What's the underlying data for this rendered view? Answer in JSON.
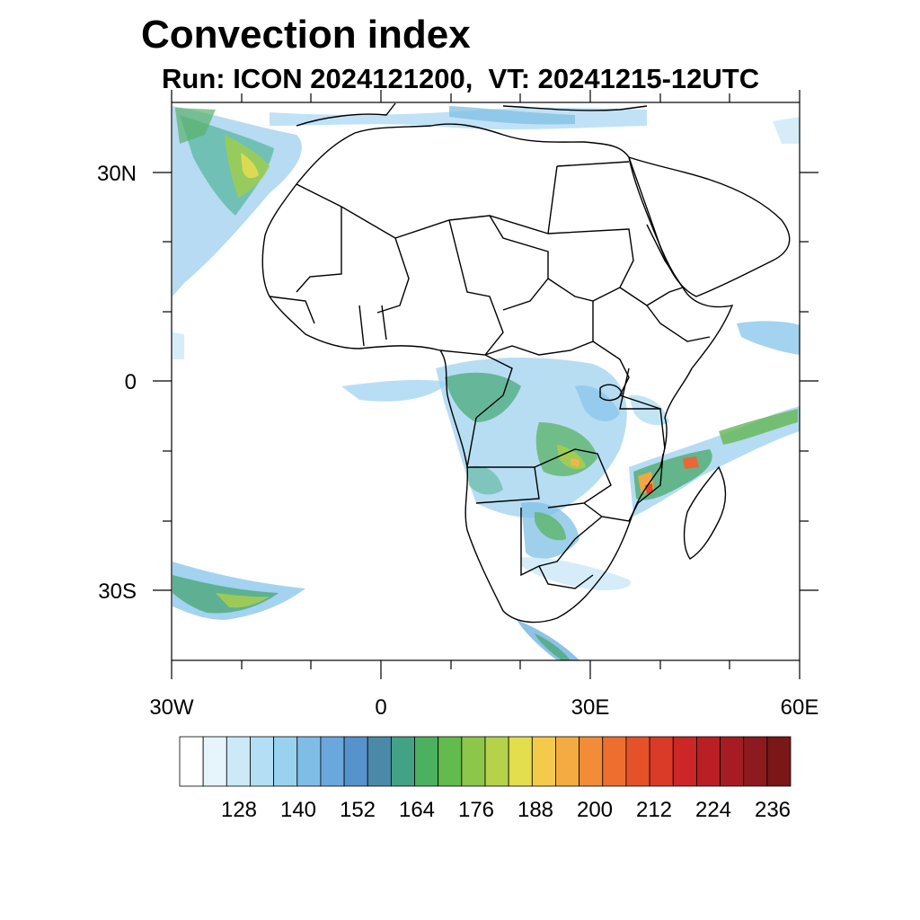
{
  "title": "Convection index",
  "subtitle": "Run: ICON 2024121200,  VT: 20241215-12UTC",
  "map": {
    "lat_labels": [
      "30N",
      "0",
      "30S"
    ],
    "lon_labels": [
      "30W",
      "0",
      "30E",
      "60E"
    ],
    "region": "Africa",
    "lat_range": [
      -40,
      40
    ],
    "lon_range": [
      -30,
      60
    ]
  },
  "colorbar": {
    "labels": [
      "128",
      "140",
      "152",
      "164",
      "176",
      "188",
      "200",
      "212",
      "224",
      "236"
    ],
    "colors": [
      "#ffffff",
      "#e6f4fc",
      "#cce9f7",
      "#b3def3",
      "#99d2ef",
      "#80bde6",
      "#6aa7dc",
      "#5692cb",
      "#4a8aa8",
      "#42a285",
      "#4bb060",
      "#62bb4c",
      "#8cc64a",
      "#b5d24a",
      "#e2de4d",
      "#f5c94a",
      "#f4ab41",
      "#f28c38",
      "#ee6e30",
      "#e55229",
      "#da3a27",
      "#cc2626",
      "#b91f25",
      "#a51c22",
      "#8c1a1e",
      "#7a1717"
    ]
  }
}
